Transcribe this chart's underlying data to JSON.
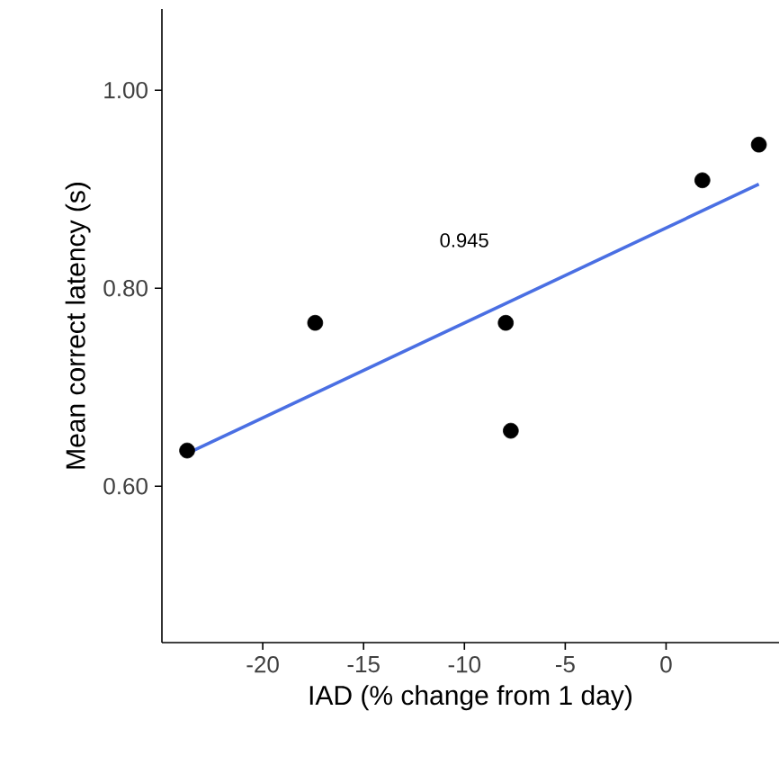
{
  "chart_data": {
    "type": "scatter",
    "xlabel": "IAD (% change from 1 day)",
    "ylabel": "Mean correct latency (s)",
    "xlim": [
      -25,
      5.6
    ],
    "ylim": [
      0.442,
      1.082
    ],
    "xticks": [
      -20,
      -15,
      -10,
      -5,
      0
    ],
    "yticks": [
      {
        "value": 0.6,
        "label": "0.60"
      },
      {
        "value": 0.8,
        "label": "0.80"
      },
      {
        "value": 1.0,
        "label": "1.00"
      }
    ],
    "annotations": [
      "0.945"
    ],
    "series": [
      {
        "color": "#000000",
        "x": [
          -23.75,
          -17.4,
          -7.95,
          -7.7,
          1.8,
          4.6
        ],
        "values": [
          0.636,
          0.765,
          0.765,
          0.656,
          0.909,
          0.945
        ]
      },
      {
        "type": "line",
        "color": "#4a6fe3",
        "x": [
          -23.75,
          4.6
        ],
        "values": [
          0.633,
          0.905
        ]
      }
    ]
  }
}
